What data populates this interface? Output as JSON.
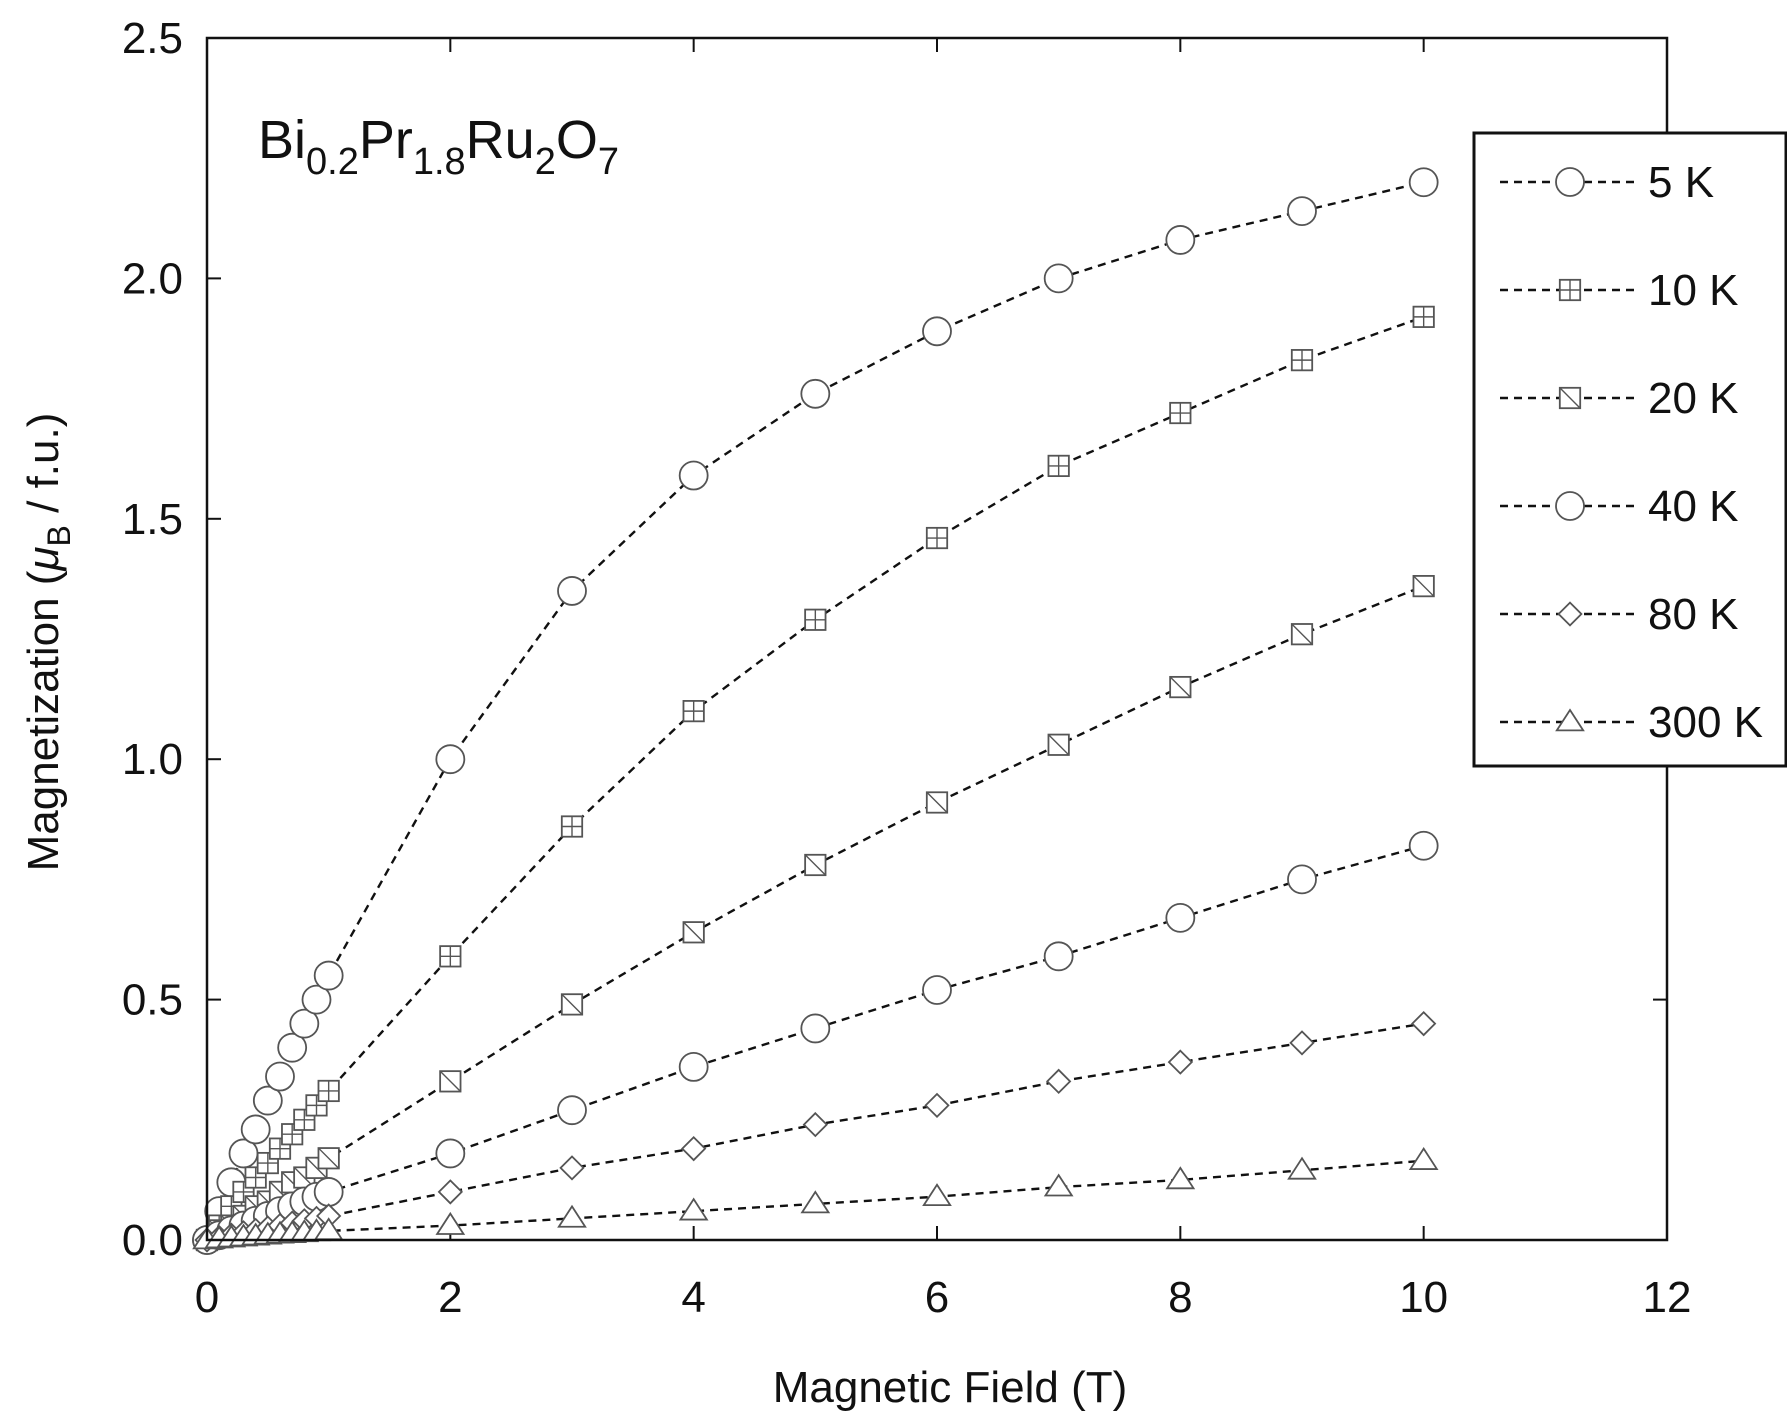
{
  "chart_data": {
    "type": "scatter",
    "compound_label": {
      "parts": [
        {
          "text": "Bi",
          "sub": false
        },
        {
          "text": "0.2",
          "sub": true
        },
        {
          "text": "Pr",
          "sub": false
        },
        {
          "text": "1.8",
          "sub": true
        },
        {
          "text": "Ru",
          "sub": false
        },
        {
          "text": "2",
          "sub": true
        },
        {
          "text": "O",
          "sub": false
        },
        {
          "text": "7",
          "sub": true
        }
      ]
    },
    "xlabel": "Magnetic Field (T)",
    "ylabel": {
      "prefix": "Magnetization (",
      "mu": "μ",
      "sub": "B",
      "suffix": " / f.u.)"
    },
    "xlim": [
      0,
      12
    ],
    "ylim": [
      0,
      2.5
    ],
    "x_ticks": [
      "0",
      "2",
      "4",
      "6",
      "8",
      "10",
      "12"
    ],
    "y_ticks": [
      "0.0",
      "0.5",
      "1.0",
      "1.5",
      "2.0",
      "2.5"
    ],
    "legend_position": "top-right",
    "line_style": "dashed",
    "series": [
      {
        "name": "5 K",
        "marker": "circle",
        "x": [
          0,
          0.1,
          0.2,
          0.3,
          0.4,
          0.5,
          0.6,
          0.7,
          0.8,
          0.9,
          1.0,
          2,
          3,
          4,
          5,
          6,
          7,
          8,
          9,
          10
        ],
        "y": [
          0,
          0.06,
          0.12,
          0.18,
          0.23,
          0.29,
          0.34,
          0.4,
          0.45,
          0.5,
          0.55,
          1.0,
          1.35,
          1.59,
          1.76,
          1.89,
          2.0,
          2.08,
          2.14,
          2.2
        ]
      },
      {
        "name": "10 K",
        "marker": "square-cross",
        "x": [
          0,
          0.1,
          0.2,
          0.3,
          0.4,
          0.5,
          0.6,
          0.7,
          0.8,
          0.9,
          1.0,
          2,
          3,
          4,
          5,
          6,
          7,
          8,
          9,
          10
        ],
        "y": [
          0,
          0.03,
          0.07,
          0.1,
          0.13,
          0.16,
          0.19,
          0.22,
          0.25,
          0.28,
          0.31,
          0.59,
          0.86,
          1.1,
          1.29,
          1.46,
          1.61,
          1.72,
          1.83,
          1.92
        ]
      },
      {
        "name": "20 K",
        "marker": "square-slash",
        "x": [
          0,
          0.1,
          0.2,
          0.3,
          0.4,
          0.5,
          0.6,
          0.7,
          0.8,
          0.9,
          1.0,
          2,
          3,
          4,
          5,
          6,
          7,
          8,
          9,
          10
        ],
        "y": [
          0,
          0.02,
          0.03,
          0.05,
          0.07,
          0.08,
          0.1,
          0.12,
          0.13,
          0.15,
          0.17,
          0.33,
          0.49,
          0.64,
          0.78,
          0.91,
          1.03,
          1.15,
          1.26,
          1.36
        ]
      },
      {
        "name": "40 K",
        "marker": "circle",
        "x": [
          0,
          0.1,
          0.2,
          0.3,
          0.4,
          0.5,
          0.6,
          0.7,
          0.8,
          0.9,
          1.0,
          2,
          3,
          4,
          5,
          6,
          7,
          8,
          9,
          10
        ],
        "y": [
          0,
          0.01,
          0.02,
          0.03,
          0.04,
          0.05,
          0.06,
          0.07,
          0.08,
          0.09,
          0.1,
          0.18,
          0.27,
          0.36,
          0.44,
          0.52,
          0.59,
          0.67,
          0.75,
          0.82
        ]
      },
      {
        "name": "80 K",
        "marker": "diamond",
        "x": [
          0,
          0.1,
          0.2,
          0.3,
          0.4,
          0.5,
          0.6,
          0.7,
          0.8,
          0.9,
          1.0,
          2,
          3,
          4,
          5,
          6,
          7,
          8,
          9,
          10
        ],
        "y": [
          0,
          0.005,
          0.01,
          0.015,
          0.02,
          0.025,
          0.03,
          0.035,
          0.04,
          0.045,
          0.05,
          0.1,
          0.15,
          0.19,
          0.24,
          0.28,
          0.33,
          0.37,
          0.41,
          0.45
        ]
      },
      {
        "name": "300 K",
        "marker": "triangle",
        "x": [
          0,
          0.1,
          0.2,
          0.3,
          0.4,
          0.5,
          0.6,
          0.7,
          0.8,
          0.9,
          1.0,
          2,
          3,
          4,
          5,
          6,
          7,
          8,
          9,
          10
        ],
        "y": [
          0,
          0.002,
          0.004,
          0.006,
          0.008,
          0.01,
          0.012,
          0.013,
          0.015,
          0.017,
          0.019,
          0.03,
          0.045,
          0.06,
          0.075,
          0.09,
          0.11,
          0.125,
          0.145,
          0.165
        ]
      }
    ]
  }
}
